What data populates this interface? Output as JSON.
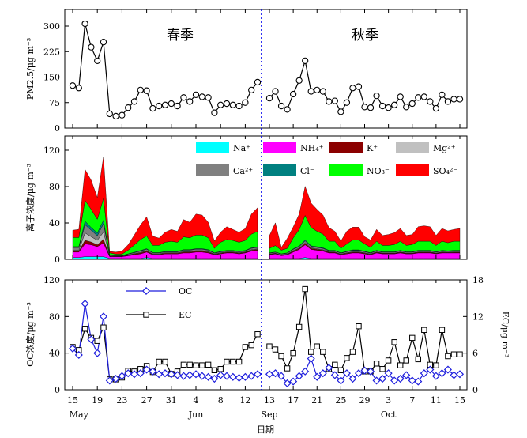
{
  "chart_data": [
    {
      "type": "line",
      "panel": "pm25",
      "ylabel": "PM2.5/μg m⁻³",
      "ylim": [
        0,
        300
      ],
      "yticks": [
        0,
        75,
        150,
        225,
        300
      ],
      "annotations": [
        "春季",
        "秋季"
      ],
      "spring_days": [
        "5-15",
        "5-16",
        "5-17",
        "5-18",
        "5-19",
        "5-20",
        "5-21",
        "5-22",
        "5-23",
        "5-24",
        "5-25",
        "5-26",
        "5-27",
        "5-28",
        "5-29",
        "5-30",
        "5-31",
        "6-1",
        "6-2",
        "6-3",
        "6-4",
        "6-5",
        "6-6",
        "6-7",
        "6-8",
        "6-9",
        "6-10",
        "6-11",
        "6-12",
        "6-13",
        "6-14"
      ],
      "spring_values": [
        125,
        118,
        307,
        238,
        198,
        253,
        42,
        35,
        38,
        60,
        78,
        112,
        110,
        58,
        65,
        68,
        72,
        65,
        90,
        78,
        98,
        92,
        90,
        45,
        68,
        72,
        68,
        65,
        75,
        112,
        135
      ],
      "autumn_days": [
        "9-13",
        "9-14",
        "9-15",
        "9-16",
        "9-17",
        "9-18",
        "9-19",
        "9-20",
        "9-21",
        "9-22",
        "9-23",
        "9-24",
        "9-25",
        "9-26",
        "9-27",
        "9-28",
        "9-29",
        "9-30",
        "10-1",
        "10-2",
        "10-3",
        "10-4",
        "10-5",
        "10-6",
        "10-7",
        "10-8",
        "10-9",
        "10-10",
        "10-11",
        "10-12",
        "10-13",
        "10-14",
        "10-15"
      ],
      "autumn_values": [
        88,
        108,
        65,
        55,
        100,
        140,
        198,
        108,
        112,
        108,
        78,
        80,
        48,
        75,
        118,
        122,
        62,
        60,
        95,
        65,
        60,
        68,
        92,
        62,
        72,
        90,
        92,
        78,
        58,
        98,
        78,
        85,
        85
      ]
    },
    {
      "type": "area",
      "panel": "ions",
      "stacked": true,
      "ylabel": "离子浓度/μg m⁻³",
      "ylim": [
        0,
        120
      ],
      "yticks": [
        0,
        40,
        80,
        120
      ],
      "legend_position": "top-right",
      "series": [
        {
          "name": "Na⁺",
          "color": "#00ffff",
          "spring": [
            2,
            2,
            3,
            3,
            3,
            3,
            1,
            1,
            1,
            1,
            1,
            1,
            2,
            1,
            1,
            1,
            1,
            1,
            1,
            1,
            1,
            1,
            1,
            1,
            1,
            1,
            1,
            1,
            1,
            1,
            1
          ],
          "autumn": [
            1,
            1,
            1,
            1,
            1,
            1,
            2,
            1,
            1,
            1,
            1,
            1,
            1,
            1,
            1,
            1,
            1,
            1,
            1,
            1,
            1,
            1,
            1,
            1,
            1,
            1,
            1,
            1,
            1,
            1,
            1,
            1,
            1
          ]
        },
        {
          "name": "NH₄⁺",
          "color": "#ff00ff",
          "spring": [
            6,
            6,
            14,
            13,
            11,
            15,
            2,
            2,
            2,
            3,
            4,
            5,
            6,
            4,
            4,
            5,
            5,
            5,
            6,
            6,
            7,
            7,
            6,
            4,
            5,
            6,
            6,
            5,
            6,
            8,
            9
          ],
          "autumn": [
            4,
            5,
            3,
            4,
            7,
            10,
            14,
            10,
            9,
            8,
            6,
            6,
            4,
            5,
            6,
            6,
            5,
            4,
            6,
            5,
            5,
            5,
            6,
            5,
            5,
            6,
            6,
            6,
            5,
            6,
            6,
            6,
            6
          ]
        },
        {
          "name": "K⁺",
          "color": "#8b0000",
          "spring": [
            1,
            1,
            4,
            3,
            2,
            4,
            0.5,
            0.3,
            0.3,
            0.5,
            0.8,
            1,
            1,
            0.6,
            0.6,
            0.8,
            0.8,
            0.8,
            1,
            1,
            1,
            1,
            1,
            0.5,
            0.8,
            0.8,
            0.8,
            0.8,
            0.8,
            1,
            1
          ],
          "autumn": [
            0.5,
            0.5,
            0.5,
            0.5,
            1,
            1,
            1.5,
            1,
            1,
            1,
            0.8,
            0.8,
            0.5,
            0.8,
            0.8,
            0.8,
            0.8,
            0.6,
            0.8,
            0.6,
            0.6,
            0.6,
            0.8,
            0.6,
            0.6,
            0.8,
            0.8,
            0.8,
            0.6,
            0.8,
            0.6,
            0.8,
            0.8
          ]
        },
        {
          "name": "Mg²⁺",
          "color": "#c0c0c0",
          "spring": [
            1,
            1,
            8,
            6,
            5,
            8,
            0.3,
            0.2,
            0.2,
            0.3,
            0.5,
            0.6,
            0.6,
            0.4,
            0.4,
            0.5,
            0.5,
            0.5,
            0.6,
            0.6,
            0.6,
            0.6,
            0.6,
            0.3,
            0.5,
            0.5,
            0.5,
            0.5,
            0.5,
            0.6,
            0.6
          ],
          "autumn": [
            0.3,
            0.3,
            0.3,
            0.3,
            0.5,
            0.5,
            0.8,
            0.6,
            0.6,
            0.5,
            0.4,
            0.4,
            0.3,
            0.4,
            0.5,
            0.5,
            0.4,
            0.3,
            0.4,
            0.3,
            0.3,
            0.3,
            0.4,
            0.3,
            0.3,
            0.4,
            0.4,
            0.4,
            0.3,
            0.4,
            0.3,
            0.4,
            0.4
          ]
        },
        {
          "name": "Ca²⁺",
          "color": "#808080",
          "spring": [
            3,
            3,
            9,
            7,
            5,
            9,
            1,
            0.5,
            0.5,
            1,
            1,
            1.5,
            1.5,
            1,
            1,
            1,
            1,
            1,
            1.5,
            1.5,
            1.5,
            1.5,
            1.5,
            1,
            1,
            1,
            1,
            1,
            1,
            1.5,
            1.5
          ],
          "autumn": [
            1,
            1,
            1,
            1,
            1.5,
            1.5,
            2,
            1.5,
            1.5,
            1.5,
            1.2,
            1.2,
            1,
            1.2,
            1.5,
            1.5,
            1.2,
            1,
            1.2,
            1,
            1,
            1,
            1.2,
            1,
            1,
            1.2,
            1.2,
            1.2,
            1,
            1.2,
            1,
            1.2,
            1.2
          ]
        },
        {
          "name": "Cl⁻",
          "color": "#008080",
          "spring": [
            1,
            1,
            4,
            3,
            3,
            4,
            0.3,
            0.2,
            0.2,
            0.3,
            0.5,
            0.6,
            0.6,
            0.4,
            0.4,
            0.5,
            0.5,
            0.5,
            0.6,
            0.6,
            0.6,
            0.6,
            0.6,
            0.3,
            0.5,
            0.5,
            0.5,
            0.5,
            0.5,
            0.6,
            0.6
          ],
          "autumn": [
            0.3,
            0.3,
            0.3,
            0.3,
            0.6,
            0.8,
            1,
            0.8,
            0.8,
            0.7,
            0.5,
            0.5,
            0.3,
            0.5,
            0.6,
            0.6,
            0.5,
            0.4,
            0.5,
            0.4,
            0.4,
            0.4,
            0.5,
            0.4,
            0.4,
            0.5,
            0.5,
            0.5,
            0.4,
            0.5,
            0.4,
            0.5,
            0.5
          ]
        },
        {
          "name": "NO₃⁻",
          "color": "#00ff00",
          "spring": [
            10,
            10,
            23,
            20,
            15,
            24,
            2,
            1.5,
            1.5,
            4,
            8,
            12,
            14,
            8,
            8,
            10,
            11,
            10,
            14,
            13,
            15,
            15,
            13,
            5,
            10,
            12,
            11,
            10,
            11,
            15,
            17
          ],
          "autumn": [
            5,
            7,
            4,
            5,
            12,
            18,
            27,
            20,
            17,
            15,
            10,
            10,
            5,
            8,
            11,
            11,
            8,
            6,
            10,
            7,
            7,
            8,
            10,
            7,
            8,
            10,
            10,
            10,
            7,
            10,
            9,
            10,
            10
          ]
        },
        {
          "name": "SO₄²⁻",
          "color": "#ff0000",
          "spring": [
            8,
            9,
            34,
            32,
            24,
            46,
            1.6,
            2.3,
            3.3,
            6,
            11,
            16,
            21,
            10,
            8,
            11,
            13,
            12,
            19,
            17,
            23,
            22,
            17,
            8,
            11,
            14,
            12,
            11,
            13,
            22,
            26
          ],
          "autumn": [
            14,
            25,
            3,
            11,
            12,
            17,
            32,
            27,
            24,
            21,
            15,
            11,
            8,
            14,
            14,
            14,
            8,
            8,
            13,
            11,
            12,
            13,
            14,
            11,
            11,
            16,
            17,
            16,
            11,
            14,
            13,
            13,
            14
          ]
        }
      ]
    },
    {
      "type": "line",
      "panel": "carbon",
      "xlabel": "日期",
      "ylabel": "OC浓度/μg m⁻³",
      "y2label": "EC/μg m⁻³",
      "ylim": [
        0,
        120
      ],
      "yticks": [
        0,
        40,
        80,
        120
      ],
      "y2lim": [
        0,
        18
      ],
      "y2ticks": [
        0,
        6,
        12,
        18
      ],
      "series": [
        {
          "name": "OC",
          "axis": "left",
          "color": "#1f1fdd",
          "spring": [
            45,
            38,
            94,
            55,
            40,
            80,
            10,
            12,
            15,
            18,
            17,
            18,
            22,
            20,
            17,
            18,
            17,
            16,
            15,
            16,
            17,
            15,
            14,
            12,
            16,
            15,
            14,
            13,
            14,
            15,
            17
          ],
          "autumn": [
            17,
            18,
            15,
            7,
            9,
            15,
            20,
            34,
            14,
            18,
            24,
            16,
            10,
            18,
            12,
            18,
            21,
            20,
            10,
            12,
            18,
            10,
            12,
            16,
            10,
            9,
            18,
            22,
            15,
            18,
            22,
            16,
            17
          ]
        },
        {
          "name": "EC",
          "axis": "right",
          "color": "#000000",
          "spring": [
            7,
            6.5,
            10,
            8.5,
            8,
            10.2,
            1.7,
            1.7,
            2,
            3.1,
            3,
            3.4,
            3.9,
            2.9,
            4.6,
            4.6,
            2.6,
            3,
            4.1,
            4.1,
            4,
            4,
            4.1,
            3.2,
            3.4,
            4.6,
            4.6,
            4.6,
            7,
            7.3,
            9.1
          ],
          "autumn": [
            7.1,
            6.6,
            5.5,
            3.5,
            6,
            10.3,
            16.5,
            6.2,
            7.1,
            6.2,
            3.4,
            4.1,
            3.2,
            5.2,
            6.2,
            10.4,
            3,
            3,
            4.3,
            3.4,
            4.8,
            7.8,
            4,
            4.8,
            8.5,
            5,
            9.8,
            4.1,
            4,
            9.8,
            5.5,
            5.8,
            5.8
          ]
        }
      ],
      "legend_position": "top-left"
    }
  ],
  "x_axis": {
    "spring_ticks": [
      {
        "day": "5-15",
        "label": "15"
      },
      {
        "day": "5-19",
        "label": "19"
      },
      {
        "day": "5-23",
        "label": "23"
      },
      {
        "day": "5-27",
        "label": "27"
      },
      {
        "day": "5-31",
        "label": "31"
      },
      {
        "day": "6-4",
        "label": "4"
      },
      {
        "day": "6-8",
        "label": "8"
      },
      {
        "day": "6-12",
        "label": "12"
      }
    ],
    "autumn_ticks": [
      {
        "day": "9-13",
        "label": "13"
      },
      {
        "day": "9-17",
        "label": "17"
      },
      {
        "day": "9-21",
        "label": "21"
      },
      {
        "day": "9-25",
        "label": "25"
      },
      {
        "day": "9-29",
        "label": "29"
      },
      {
        "day": "10-3",
        "label": "3"
      },
      {
        "day": "10-7",
        "label": "7"
      },
      {
        "day": "10-11",
        "label": "11"
      },
      {
        "day": "10-15",
        "label": "15"
      }
    ],
    "month_labels": [
      {
        "day": "5-16",
        "label": "May"
      },
      {
        "day": "6-4",
        "label": "Jun"
      },
      {
        "day": "9-13",
        "label": "Sep"
      },
      {
        "day": "10-3",
        "label": "Oct"
      }
    ]
  }
}
